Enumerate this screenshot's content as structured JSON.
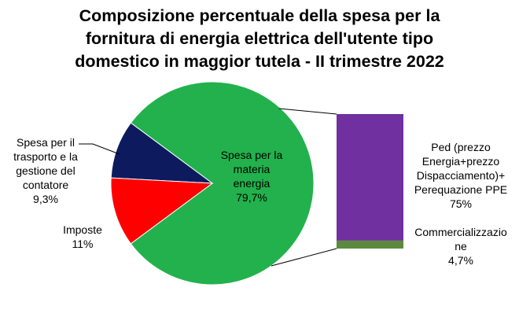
{
  "chart_data": {
    "type": "pie",
    "title_lines": [
      "Composizione percentuale della spesa per la",
      "fornitura di energia elettrica dell'utente tipo",
      "domestico in maggior tutela - II trimestre 2022"
    ],
    "pie": {
      "slices": [
        {
          "label_lines": [
            "Spesa per la",
            "materia",
            "energia"
          ],
          "value_text": "79,7%",
          "value": 79.7,
          "color": "#22b14c"
        },
        {
          "label_lines": [
            "Spesa per il",
            "trasporto e la",
            "gestione del",
            "contatore"
          ],
          "value_text": "9,3%",
          "value": 9.3,
          "color": "#0d1b5e"
        },
        {
          "label_lines": [
            "Imposte"
          ],
          "value_text": "11%",
          "value": 11.0,
          "color": "#ff0000"
        }
      ]
    },
    "breakdown_bar": {
      "of_slice": "Spesa per la materia energia",
      "segments": [
        {
          "label_lines": [
            "Ped (prezzo",
            "Energia+prezzo",
            "Dispacciamento)+",
            "Perequazione PPE"
          ],
          "value_text": "75%",
          "value": 75.0,
          "color": "#7030a0"
        },
        {
          "label_lines": [
            "Commercializzazio",
            "ne"
          ],
          "value_text": "4,7%",
          "value": 4.7,
          "color": "#5b8a3c"
        }
      ]
    },
    "connector_color": "#000000"
  }
}
